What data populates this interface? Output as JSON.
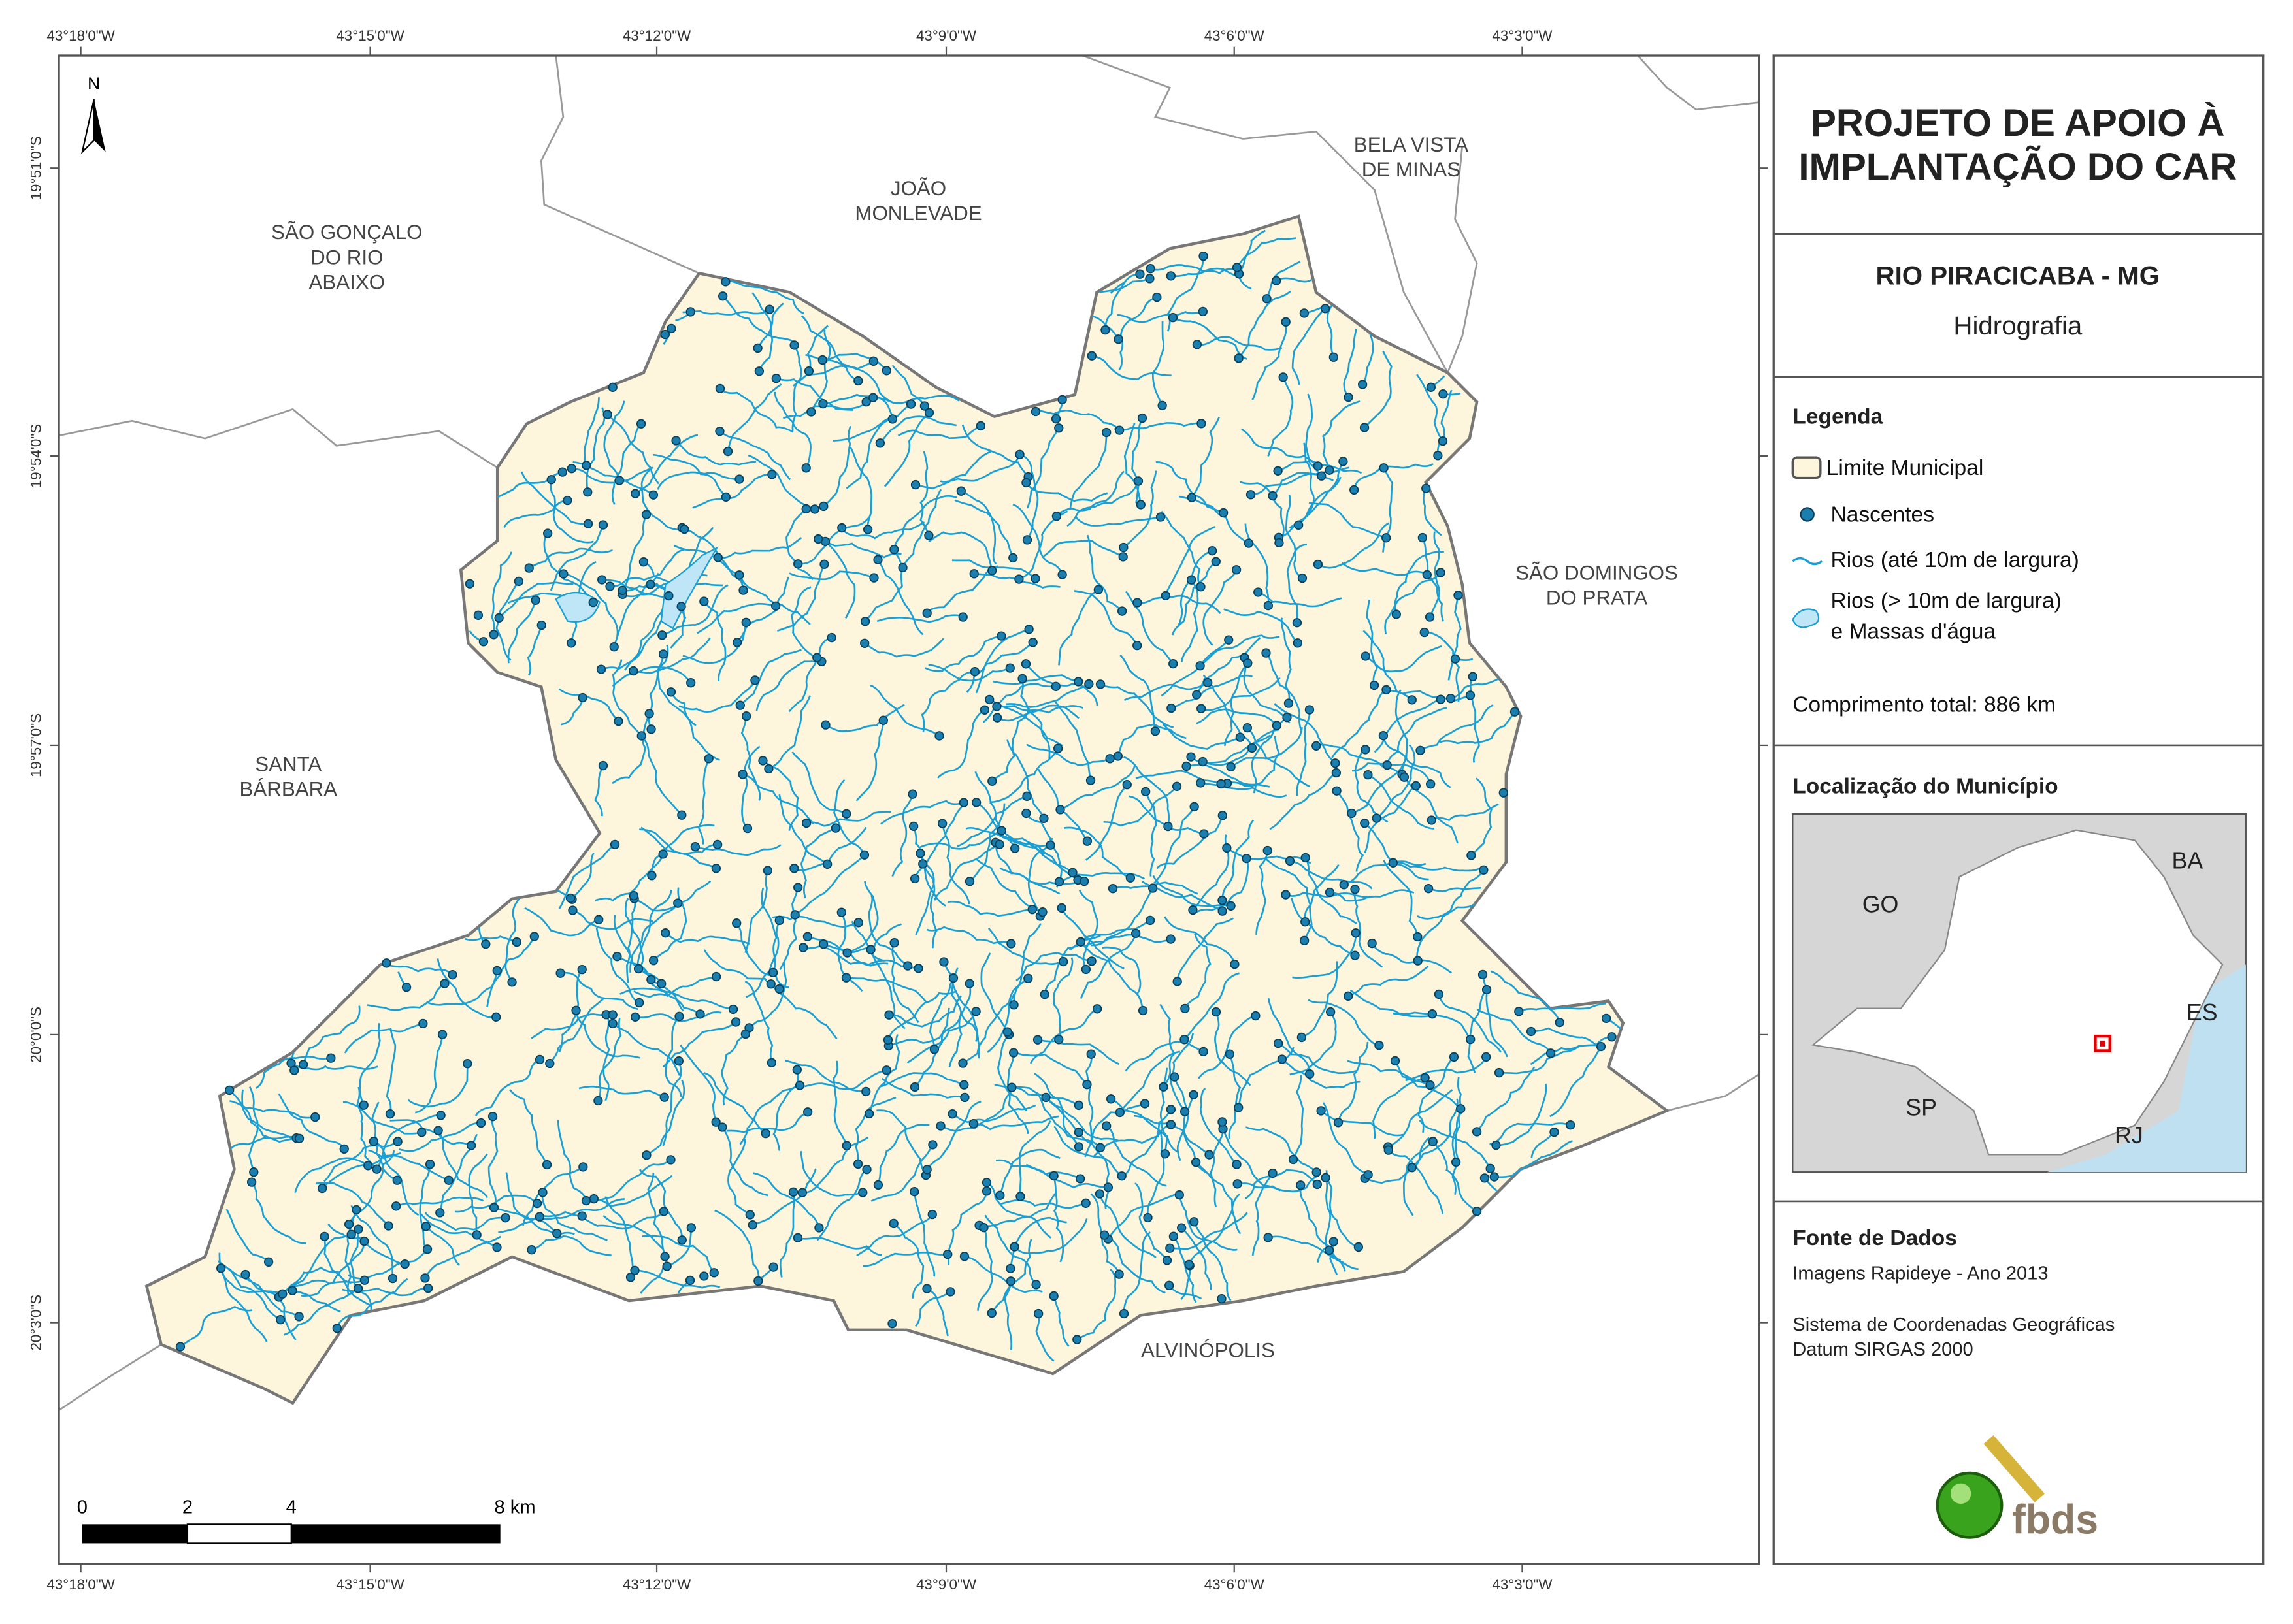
{
  "map": {
    "top_labels": [
      "43°18'0\"W",
      "43°15'0\"W",
      "43°12'0\"W",
      "43°9'0\"W",
      "43°6'0\"W",
      "43°3'0\"W"
    ],
    "bottom_labels": [
      "43°18'0\"W",
      "43°15'0\"W",
      "43°12'0\"W",
      "43°9'0\"W",
      "43°6'0\"W",
      "43°3'0\"W"
    ],
    "left_labels": [
      "19°51'0\"S",
      "19°54'0\"S",
      "19°57'0\"S",
      "20°0'0\"S",
      "20°3'0\"S"
    ],
    "north": "N",
    "places": [
      {
        "lines": [
          "SÃO GONÇALO",
          "DO RIO",
          "ABAIXO"
        ]
      },
      {
        "lines": [
          "JOÃO",
          "MONLEVADE"
        ]
      },
      {
        "lines": [
          "BELA VISTA",
          "DE MINAS"
        ]
      },
      {
        "lines": [
          "SÃO DOMINGOS",
          "DO PRATA"
        ]
      },
      {
        "lines": [
          "SANTA",
          "BÁRBARA"
        ]
      },
      {
        "lines": [
          "ALVINÓPOLIS"
        ]
      }
    ],
    "scale_labels": [
      "0",
      "2",
      "4",
      "8 km"
    ]
  },
  "panel": {
    "title_lines": [
      "PROJETO DE APOIO À",
      "IMPLANTAÇÃO DO CAR"
    ],
    "subtitle": "RIO PIRACICABA - MG",
    "theme": "Hidrografia",
    "legend": {
      "title": "Legenda",
      "items": [
        {
          "lines": [
            "Limite Municipal"
          ]
        },
        {
          "lines": [
            "Nascentes"
          ]
        },
        {
          "lines": [
            "Rios (até 10m de largura)"
          ]
        },
        {
          "lines": [
            "Rios (> 10m de largura)",
            "e Massas d'água"
          ]
        }
      ]
    },
    "length": "Comprimento total:  886 km",
    "location": {
      "title": "Localização do Município",
      "states": [
        "GO",
        "BA",
        "ES",
        "SP",
        "RJ"
      ]
    },
    "sources": {
      "title": "Fonte de Dados",
      "lines": [
        "Imagens Rapideye - Ano 2013",
        "Sistema de Coordenadas Geográficas",
        "Datum SIRGAS 2000"
      ]
    },
    "logo": "fbds"
  }
}
